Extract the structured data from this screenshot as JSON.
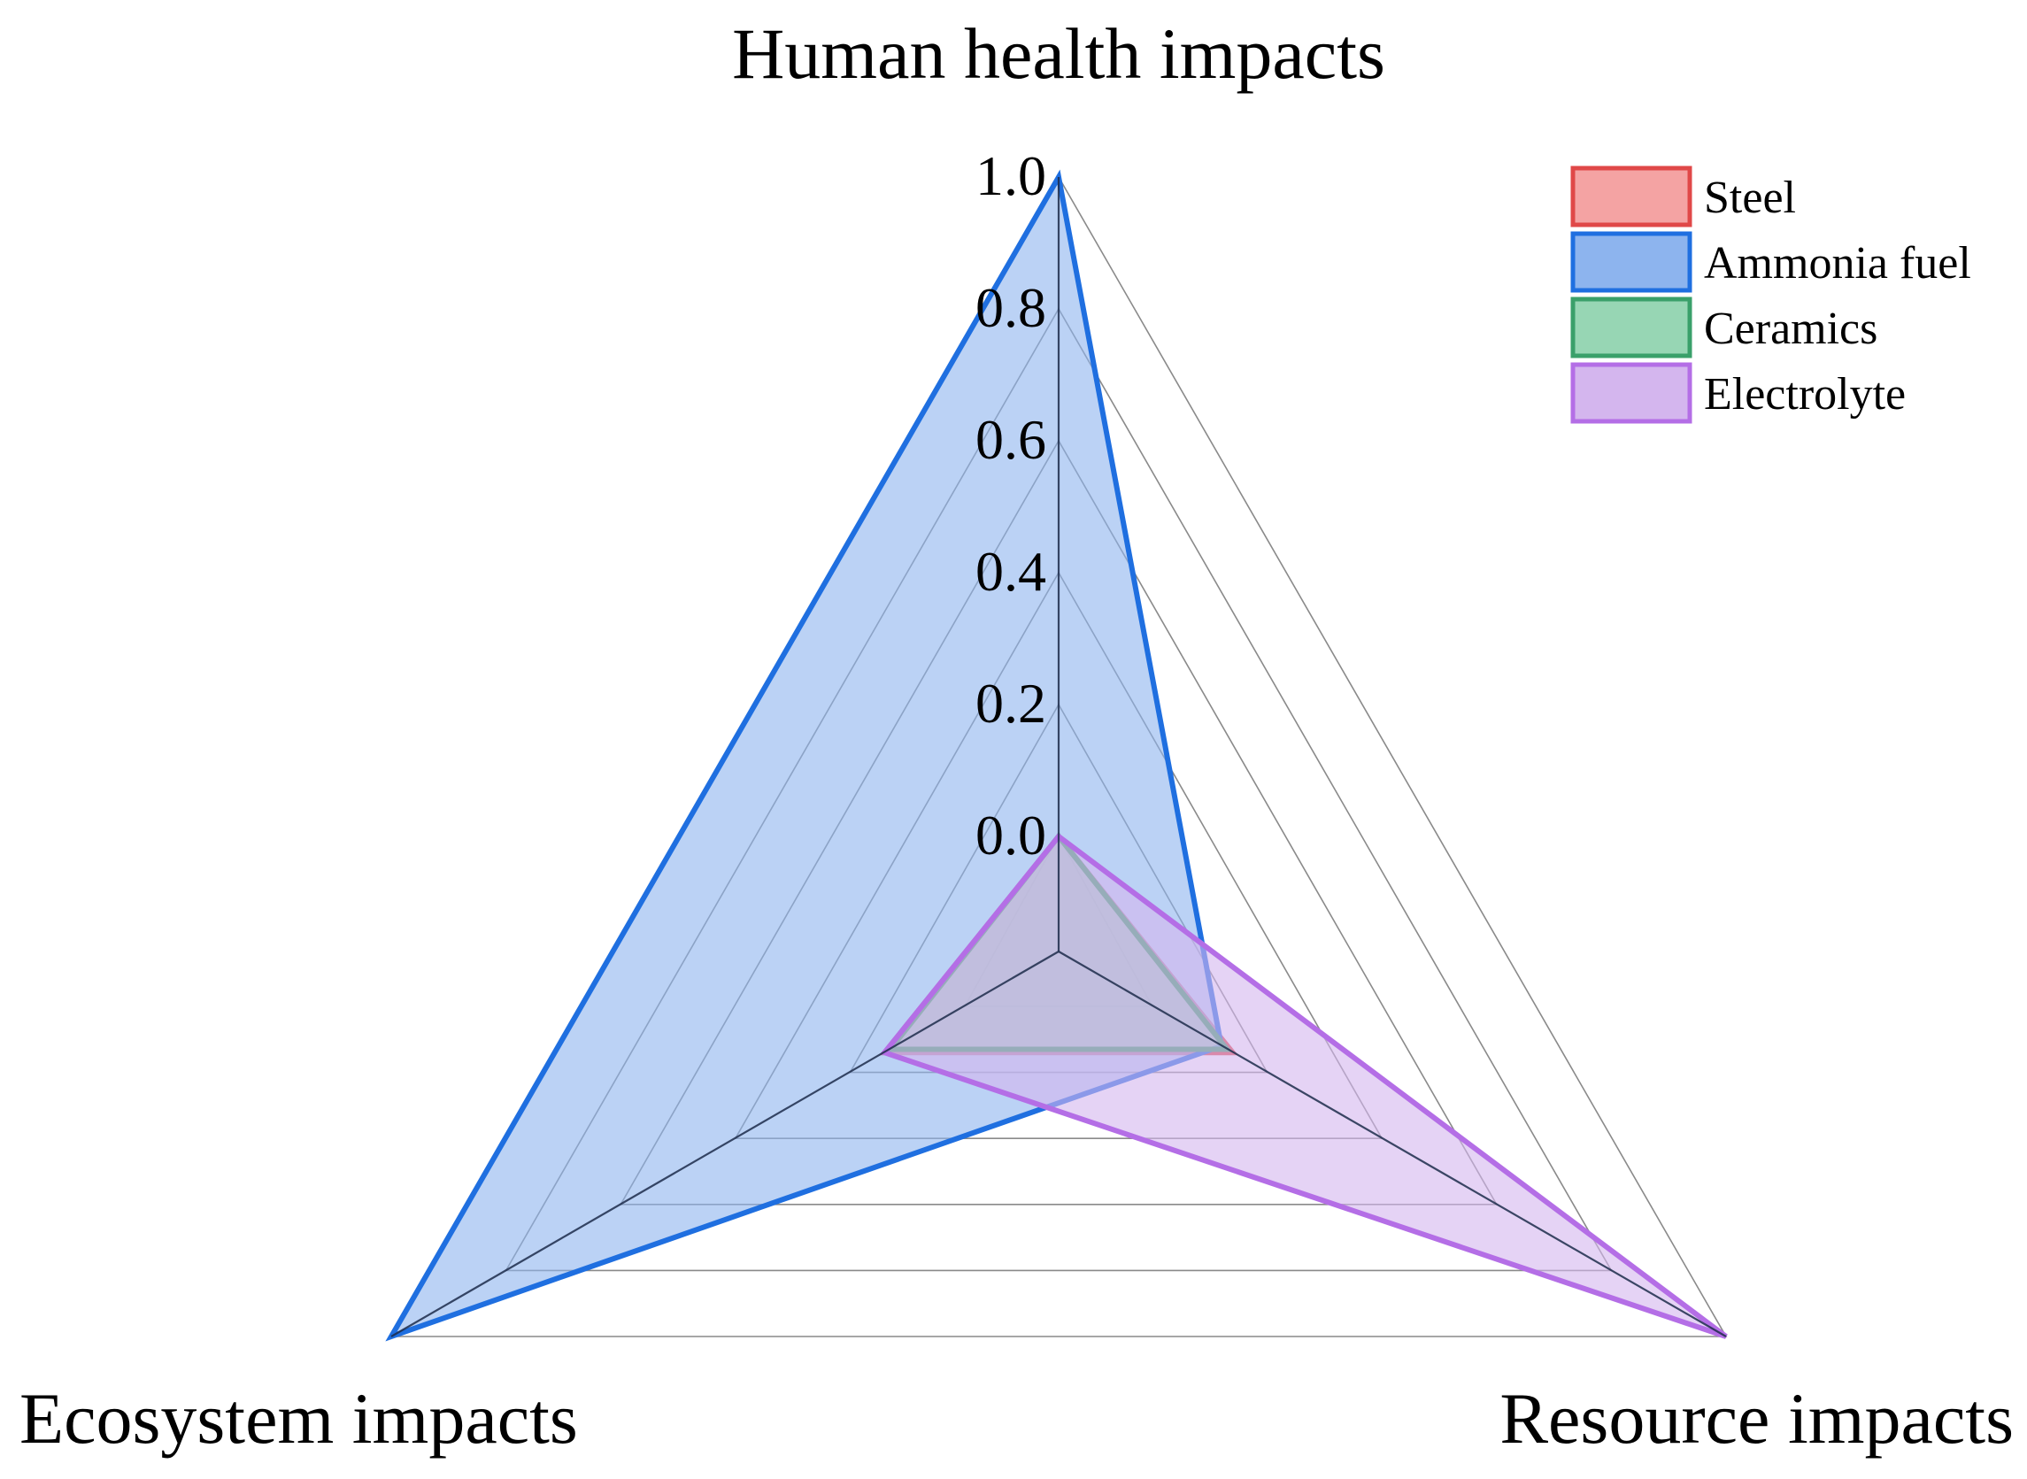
{
  "chart_data": {
    "type": "radar",
    "axes": [
      "Human health impacts",
      "Resource impacts",
      "Ecosystem impacts"
    ],
    "range": [
      0.0,
      1.0
    ],
    "ticks": [
      "0.0",
      "0.2",
      "0.4",
      "0.6",
      "0.8",
      "1.0"
    ],
    "grid": true,
    "legend_position": "top-right",
    "series": [
      {
        "name": "Steel",
        "values": [
          0.0,
          0.14,
          0.14
        ],
        "stroke": "#e04848",
        "fill": "#f4a3a3"
      },
      {
        "name": "Ammonia fuel",
        "values": [
          1.0,
          0.12,
          1.0
        ],
        "stroke": "#1f6fe0",
        "fill": "#8db4ee"
      },
      {
        "name": "Ceramics",
        "values": [
          0.0,
          0.13,
          0.13
        ],
        "stroke": "#3aa06a",
        "fill": "#97d6b4"
      },
      {
        "name": "Electrolyte",
        "values": [
          0.0,
          1.0,
          0.14
        ],
        "stroke": "#b46ee6",
        "fill": "#d4b6ee"
      }
    ]
  }
}
